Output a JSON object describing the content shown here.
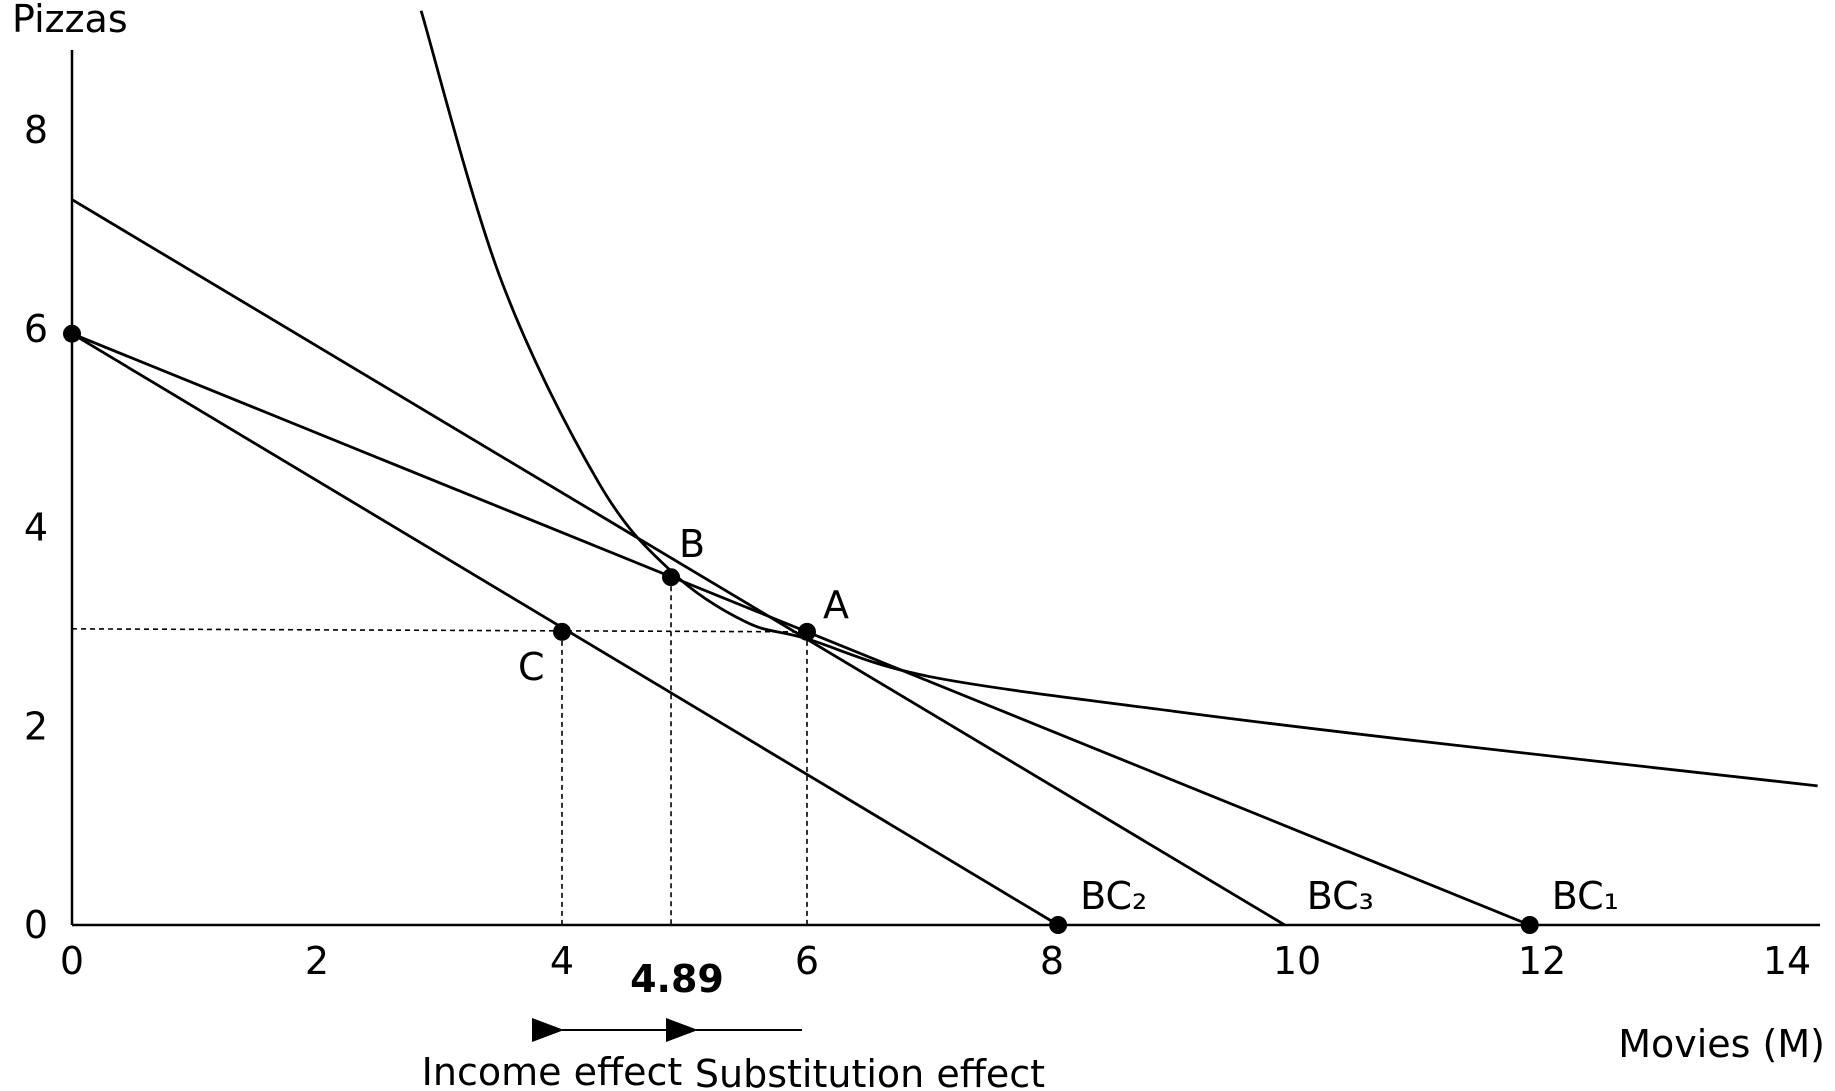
{
  "chart_data": {
    "type": "line",
    "xlabel": "Movies (M)",
    "ylabel": "Pizzas",
    "xlim": [
      0,
      14
    ],
    "ylim": [
      0,
      8.5
    ],
    "x_ticks": [
      "0",
      "2",
      "4",
      "6",
      "8",
      "10",
      "12",
      "14"
    ],
    "y_ticks": [
      "0",
      "2",
      "4",
      "6",
      "8"
    ],
    "grid": false,
    "series": [
      {
        "name": "BC₁",
        "x": [
          0,
          11.9
        ],
        "y": [
          5.95,
          0
        ]
      },
      {
        "name": "BC₂",
        "x": [
          0,
          8.05
        ],
        "y": [
          5.95,
          0
        ]
      },
      {
        "name": "BC₃",
        "x": [
          0,
          9.9
        ],
        "y": [
          7.3,
          0
        ]
      },
      {
        "name": "",
        "x": [
          2.85,
          3.5,
          4.3,
          4.9,
          5.5,
          6.0,
          7.0,
          9.0,
          11.0,
          14.25
        ],
        "y": [
          9.2,
          6.5,
          4.45,
          3.55,
          3.05,
          2.88,
          2.5,
          2.15,
          1.85,
          1.4
        ]
      }
    ],
    "points": [
      {
        "label": "A",
        "x": 6.0,
        "y": 2.95
      },
      {
        "label": "B",
        "x": 4.89,
        "y": 3.5
      },
      {
        "label": "C",
        "x": 4.0,
        "y": 2.95
      },
      {
        "label": "",
        "x": 0,
        "y": 5.95
      },
      {
        "label": "",
        "x": 8.05,
        "y": 0
      },
      {
        "label": "",
        "x": 11.9,
        "y": 0
      }
    ],
    "guides": {
      "horizontal_y": 2.95,
      "vertical_x": [
        4.0,
        4.89,
        6.0
      ]
    },
    "annotations": {
      "value_label": "4.89",
      "income_effect": "Income effect",
      "substitution_effect": "Substitution effect"
    }
  }
}
